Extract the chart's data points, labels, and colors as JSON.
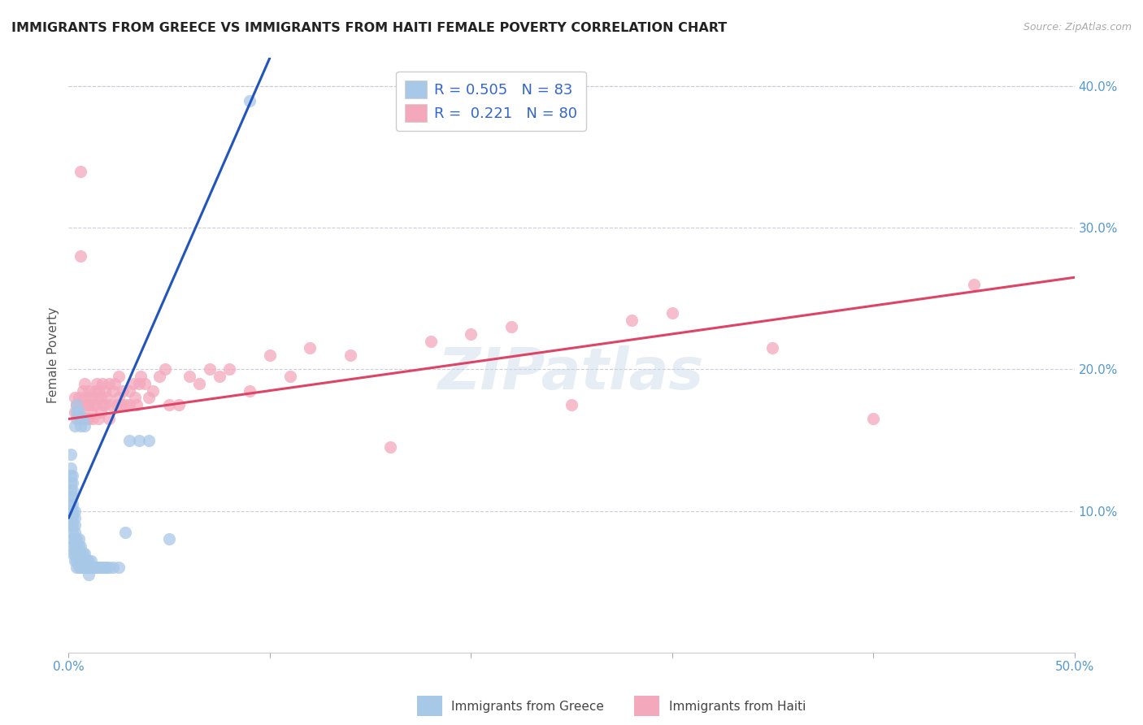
{
  "title": "IMMIGRANTS FROM GREECE VS IMMIGRANTS FROM HAITI FEMALE POVERTY CORRELATION CHART",
  "source": "Source: ZipAtlas.com",
  "ylabel": "Female Poverty",
  "xlim": [
    0.0,
    0.5
  ],
  "ylim": [
    0.0,
    0.42
  ],
  "xticks": [
    0.0,
    0.1,
    0.2,
    0.3,
    0.4,
    0.5
  ],
  "xticklabels": [
    "0.0%",
    "",
    "",
    "",
    "",
    "50.0%"
  ],
  "yticks_right": [
    0.1,
    0.2,
    0.3,
    0.4
  ],
  "yticklabels_right": [
    "10.0%",
    "20.0%",
    "30.0%",
    "40.0%"
  ],
  "greece_color": "#a8c8e8",
  "haiti_color": "#f4a8bc",
  "greece_line_color": "#2255bb",
  "haiti_line_color": "#dd4466",
  "background_color": "#ffffff",
  "watermark": "ZIPatlas",
  "greece_scatter_x": [
    0.001,
    0.001,
    0.001,
    0.001,
    0.001,
    0.001,
    0.001,
    0.001,
    0.001,
    0.001,
    0.002,
    0.002,
    0.002,
    0.002,
    0.002,
    0.002,
    0.002,
    0.002,
    0.002,
    0.002,
    0.002,
    0.002,
    0.003,
    0.003,
    0.003,
    0.003,
    0.003,
    0.003,
    0.003,
    0.003,
    0.003,
    0.004,
    0.004,
    0.004,
    0.004,
    0.004,
    0.004,
    0.004,
    0.005,
    0.005,
    0.005,
    0.005,
    0.005,
    0.005,
    0.005,
    0.006,
    0.006,
    0.006,
    0.006,
    0.006,
    0.006,
    0.007,
    0.007,
    0.007,
    0.007,
    0.008,
    0.008,
    0.008,
    0.008,
    0.009,
    0.009,
    0.01,
    0.01,
    0.01,
    0.011,
    0.011,
    0.012,
    0.013,
    0.014,
    0.015,
    0.016,
    0.017,
    0.018,
    0.019,
    0.02,
    0.022,
    0.025,
    0.028,
    0.03,
    0.035,
    0.04,
    0.05,
    0.09
  ],
  "greece_scatter_y": [
    0.09,
    0.095,
    0.1,
    0.105,
    0.11,
    0.115,
    0.12,
    0.125,
    0.13,
    0.14,
    0.07,
    0.075,
    0.08,
    0.085,
    0.09,
    0.095,
    0.1,
    0.105,
    0.11,
    0.115,
    0.12,
    0.125,
    0.065,
    0.07,
    0.075,
    0.08,
    0.085,
    0.09,
    0.095,
    0.1,
    0.16,
    0.06,
    0.065,
    0.07,
    0.075,
    0.08,
    0.17,
    0.175,
    0.06,
    0.065,
    0.07,
    0.075,
    0.08,
    0.165,
    0.17,
    0.06,
    0.065,
    0.07,
    0.075,
    0.16,
    0.165,
    0.06,
    0.065,
    0.07,
    0.165,
    0.06,
    0.065,
    0.07,
    0.16,
    0.06,
    0.065,
    0.055,
    0.06,
    0.065,
    0.06,
    0.065,
    0.06,
    0.06,
    0.06,
    0.06,
    0.06,
    0.06,
    0.06,
    0.06,
    0.06,
    0.06,
    0.06,
    0.085,
    0.15,
    0.15,
    0.15,
    0.08,
    0.39
  ],
  "haiti_scatter_x": [
    0.003,
    0.003,
    0.004,
    0.004,
    0.005,
    0.005,
    0.006,
    0.006,
    0.006,
    0.007,
    0.007,
    0.008,
    0.008,
    0.009,
    0.009,
    0.01,
    0.01,
    0.01,
    0.011,
    0.011,
    0.012,
    0.012,
    0.013,
    0.013,
    0.014,
    0.014,
    0.015,
    0.015,
    0.016,
    0.016,
    0.017,
    0.017,
    0.018,
    0.018,
    0.019,
    0.02,
    0.02,
    0.021,
    0.022,
    0.023,
    0.024,
    0.025,
    0.025,
    0.026,
    0.027,
    0.028,
    0.03,
    0.03,
    0.032,
    0.033,
    0.034,
    0.035,
    0.036,
    0.038,
    0.04,
    0.042,
    0.045,
    0.048,
    0.05,
    0.055,
    0.06,
    0.065,
    0.07,
    0.075,
    0.08,
    0.09,
    0.1,
    0.11,
    0.12,
    0.14,
    0.16,
    0.18,
    0.2,
    0.22,
    0.25,
    0.28,
    0.3,
    0.35,
    0.4,
    0.45
  ],
  "haiti_scatter_y": [
    0.17,
    0.18,
    0.165,
    0.175,
    0.18,
    0.17,
    0.34,
    0.28,
    0.175,
    0.185,
    0.165,
    0.18,
    0.19,
    0.165,
    0.175,
    0.165,
    0.175,
    0.185,
    0.17,
    0.18,
    0.165,
    0.175,
    0.185,
    0.175,
    0.19,
    0.18,
    0.165,
    0.185,
    0.17,
    0.18,
    0.175,
    0.19,
    0.175,
    0.185,
    0.18,
    0.165,
    0.19,
    0.175,
    0.185,
    0.19,
    0.175,
    0.18,
    0.195,
    0.175,
    0.185,
    0.175,
    0.185,
    0.175,
    0.19,
    0.18,
    0.175,
    0.19,
    0.195,
    0.19,
    0.18,
    0.185,
    0.195,
    0.2,
    0.175,
    0.175,
    0.195,
    0.19,
    0.2,
    0.195,
    0.2,
    0.185,
    0.21,
    0.195,
    0.215,
    0.21,
    0.145,
    0.22,
    0.225,
    0.23,
    0.175,
    0.235,
    0.24,
    0.215,
    0.165,
    0.26
  ],
  "greece_line_x": [
    0.0,
    0.1
  ],
  "greece_line_y": [
    0.095,
    0.42
  ],
  "haiti_line_x": [
    0.0,
    0.5
  ],
  "haiti_line_y": [
    0.165,
    0.265
  ]
}
